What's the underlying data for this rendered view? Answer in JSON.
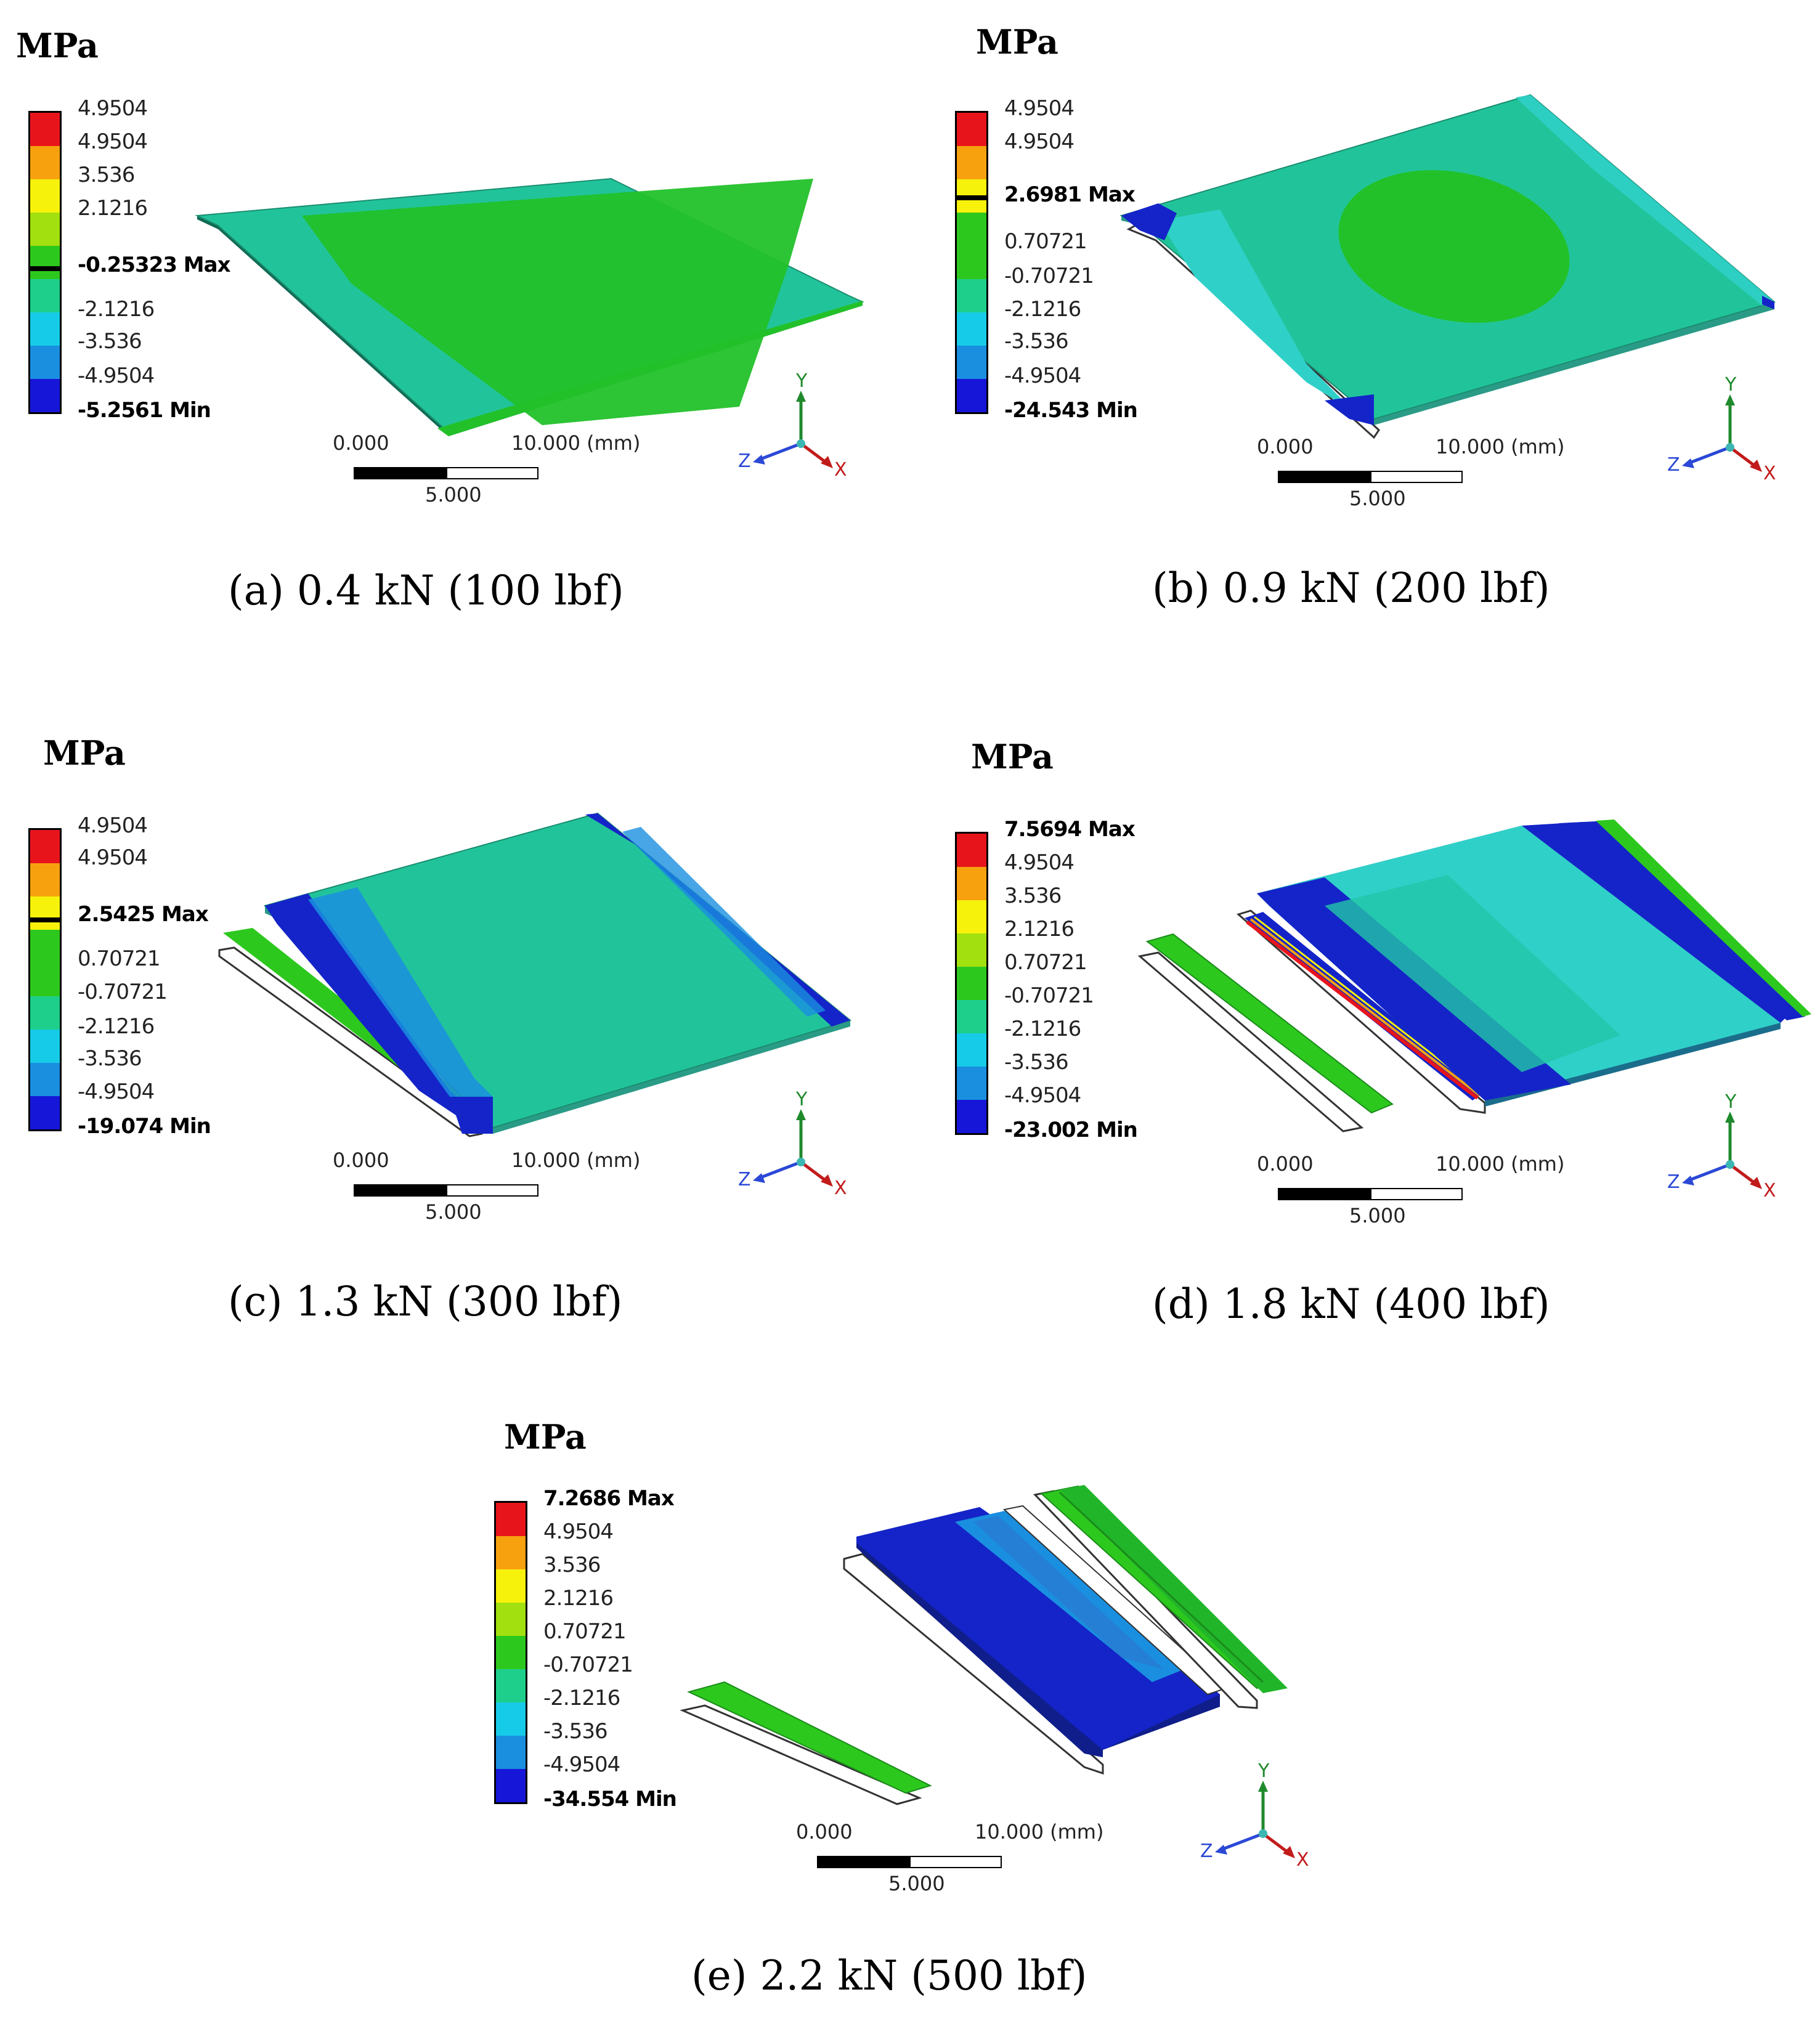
{
  "figure": {
    "panels": [
      {
        "id": "a",
        "unit": "MPa",
        "caption": "(a) 0.4 kN (100 lbf)",
        "legend_labels": [
          "4.9504",
          "4.9504",
          "3.536",
          "2.1216",
          "-0.25323 Max",
          "-2.1216",
          "-3.536",
          "-4.9504",
          "-5.2561 Min"
        ],
        "scale": {
          "start": "0.000",
          "end": "10.000 (mm)",
          "mid": "5.000"
        },
        "axes": {
          "y": "Y",
          "z": "Z",
          "x": "X"
        }
      },
      {
        "id": "b",
        "unit": "MPa",
        "caption": "(b) 0.9 kN (200 lbf)",
        "legend_labels": [
          "4.9504",
          "4.9504",
          "2.6981 Max",
          "0.70721",
          "-0.70721",
          "-2.1216",
          "-3.536",
          "-4.9504",
          "-24.543 Min"
        ],
        "scale": {
          "start": "0.000",
          "end": "10.000 (mm)",
          "mid": "5.000"
        },
        "axes": {
          "y": "Y",
          "z": "Z",
          "x": "X"
        }
      },
      {
        "id": "c",
        "unit": "MPa",
        "caption": "(c) 1.3 kN (300 lbf)",
        "legend_labels": [
          "4.9504",
          "4.9504",
          "2.5425 Max",
          "0.70721",
          "-0.70721",
          "-2.1216",
          "-3.536",
          "-4.9504",
          "-19.074 Min"
        ],
        "scale": {
          "start": "0.000",
          "end": "10.000 (mm)",
          "mid": "5.000"
        },
        "axes": {
          "y": "Y",
          "z": "Z",
          "x": "X"
        }
      },
      {
        "id": "d",
        "unit": "MPa",
        "caption": "(d) 1.8 kN (400 lbf)",
        "legend_labels": [
          "7.5694 Max",
          "4.9504",
          "3.536",
          "2.1216",
          "0.70721",
          "-0.70721",
          "-2.1216",
          "-3.536",
          "-4.9504",
          "-23.002 Min"
        ],
        "scale": {
          "start": "0.000",
          "end": "10.000 (mm)",
          "mid": "5.000"
        },
        "axes": {
          "y": "Y",
          "z": "Z",
          "x": "X"
        }
      },
      {
        "id": "e",
        "unit": "MPa",
        "caption": "(e) 2.2 kN (500 lbf)",
        "legend_labels": [
          "7.2686 Max",
          "4.9504",
          "3.536",
          "2.1216",
          "0.70721",
          "-0.70721",
          "-2.1216",
          "-3.536",
          "-4.9504",
          "-34.554 Min"
        ],
        "scale": {
          "start": "0.000",
          "end": "10.000 (mm)",
          "mid": "5.000"
        },
        "axes": {
          "y": "Y",
          "z": "Z",
          "x": "X"
        }
      }
    ],
    "colors": {
      "red": "#e8141b",
      "orange": "#f7a10f",
      "yellow": "#f7f20b",
      "yellow_green": "#a3e00f",
      "green": "#2dc81e",
      "sea_green": "#1ecf8c",
      "teal": "#1fd9c6",
      "cyan": "#16cbe8",
      "light_blue": "#1a8fe0",
      "blue": "#1616d9",
      "plate_green": "#21c49a",
      "plate_core": "#22c12a",
      "plate_cyan": "#2fd0c8",
      "plate_dark": "#1424c8"
    }
  }
}
